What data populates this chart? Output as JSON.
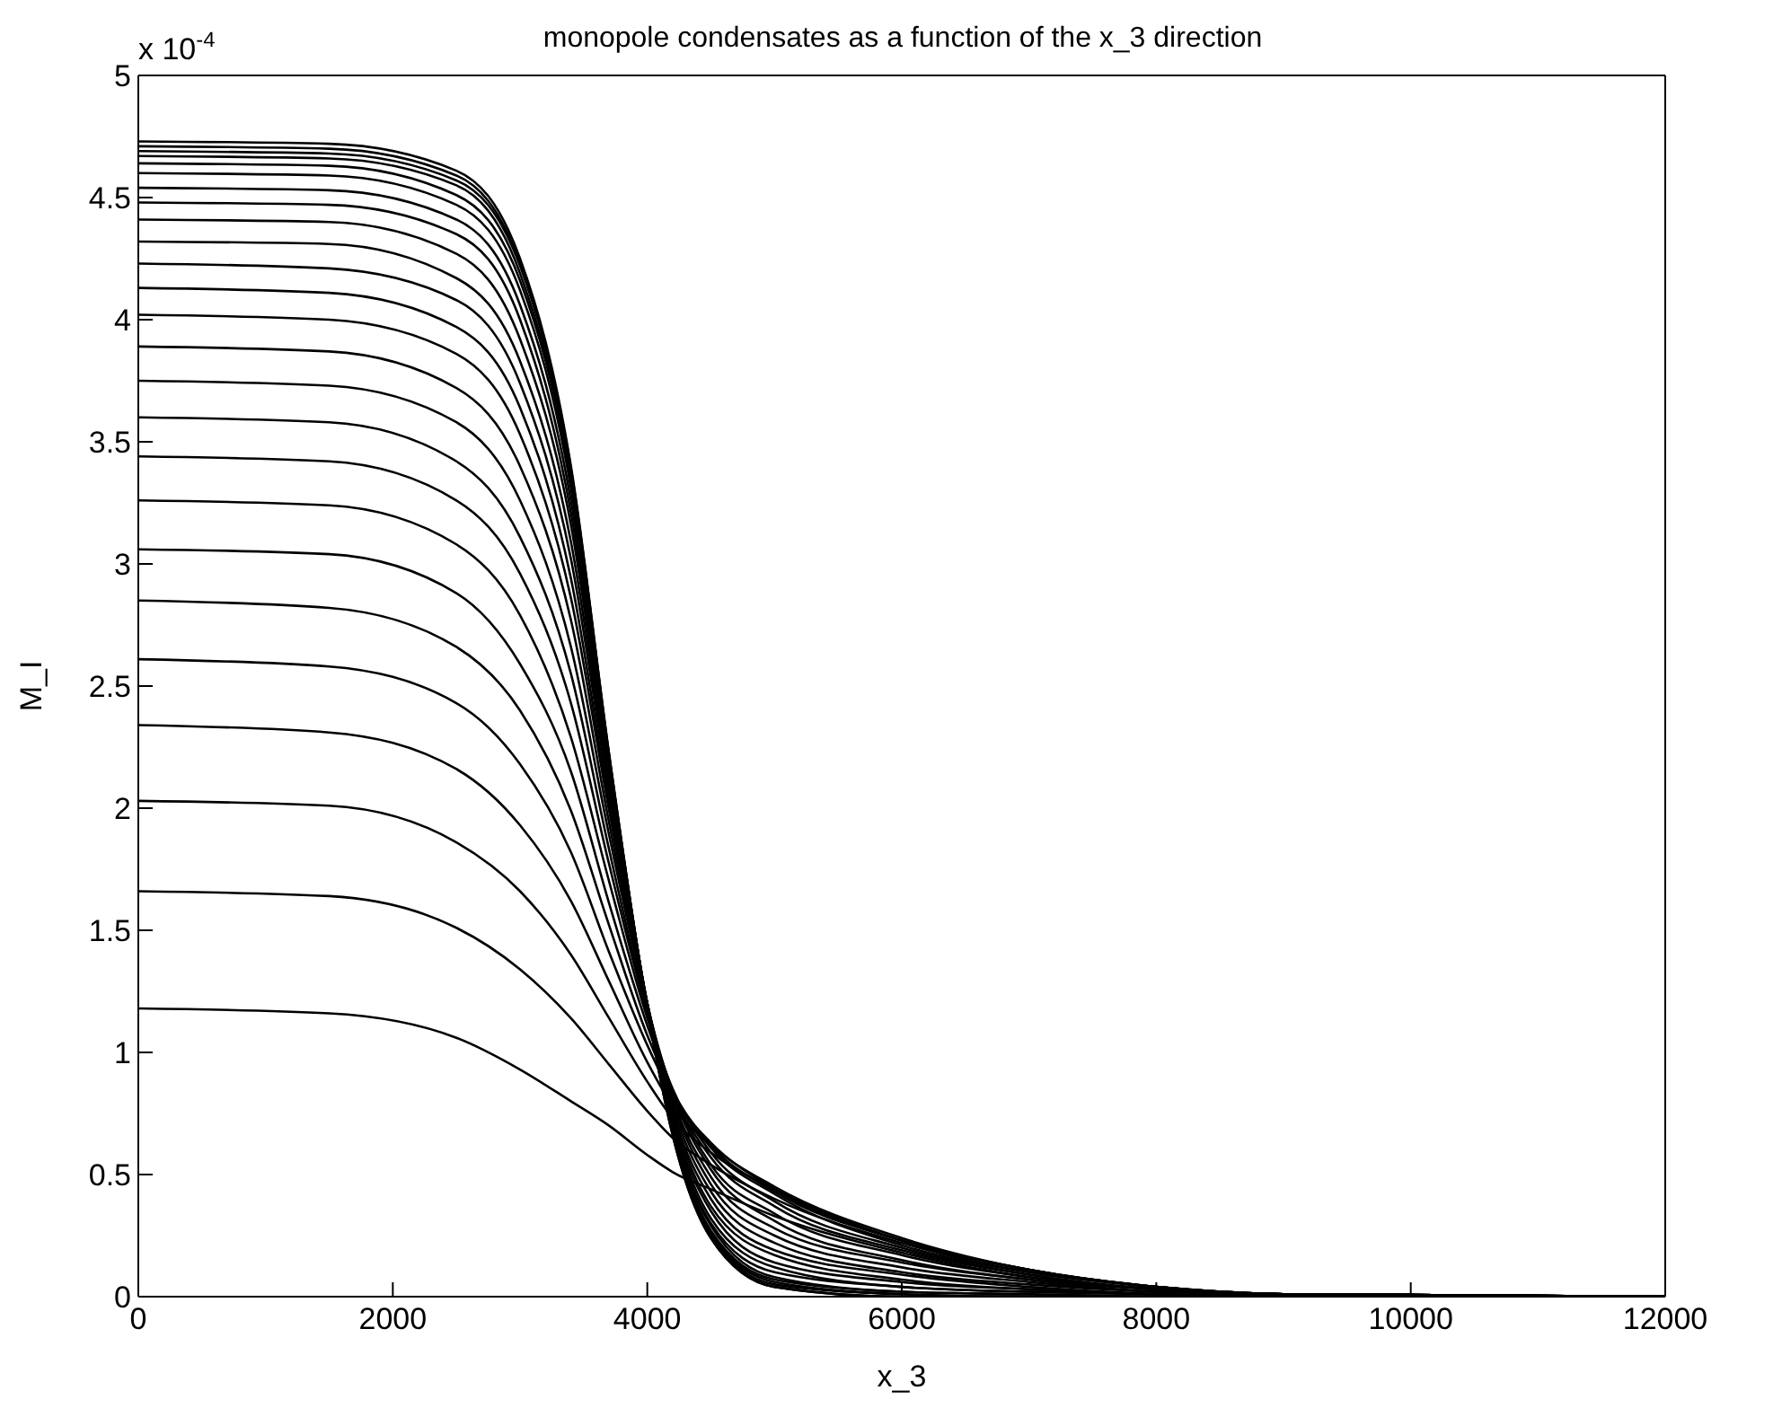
{
  "chart_data": {
    "type": "line",
    "title": "monopole condensates as a function of the x_3 direction",
    "xlabel": "x_3",
    "ylabel": "M_I",
    "annotations": [
      "x 10$^{-4}$"
    ],
    "x": [
      0,
      1500,
      2500,
      3000,
      3400,
      3700,
      4000,
      4200,
      4500,
      5000,
      6000,
      7000,
      8000,
      9000,
      12000
    ],
    "xlim": [
      0,
      12000
    ],
    "xticks": [
      0,
      2000,
      4000,
      6000,
      8000,
      10000,
      12000
    ],
    "ylim": [
      0,
      5
    ],
    "yticks": [
      0,
      0.5,
      1,
      1.5,
      2,
      2.5,
      3,
      3.5,
      4,
      4.5,
      5
    ],
    "marker": "none",
    "line_style": "solid",
    "series": [
      {
        "color": "#000000",
        "values": [
          4.73,
          4.72,
          4.61,
          4.25,
          3.4,
          2.22,
          1.18,
          0.66,
          0.24,
          0.04,
          0,
          0,
          0,
          0,
          0
        ]
      },
      {
        "color": "#000000",
        "values": [
          4.71,
          4.7,
          4.59,
          4.23,
          3.39,
          2.22,
          1.18,
          0.66,
          0.24,
          0.04,
          0,
          0,
          0,
          0,
          0
        ]
      },
      {
        "color": "#000000",
        "values": [
          4.69,
          4.68,
          4.57,
          4.22,
          3.38,
          2.21,
          1.18,
          0.67,
          0.25,
          0.05,
          0.01,
          0,
          0,
          0,
          0
        ]
      },
      {
        "color": "#000000",
        "values": [
          4.67,
          4.66,
          4.55,
          4.19,
          3.36,
          2.2,
          1.19,
          0.68,
          0.26,
          0.06,
          0.01,
          0,
          0,
          0,
          0
        ]
      },
      {
        "color": "#000000",
        "values": [
          4.64,
          4.63,
          4.51,
          4.16,
          3.34,
          2.19,
          1.19,
          0.69,
          0.27,
          0.07,
          0.02,
          0.01,
          0,
          0,
          0
        ]
      },
      {
        "color": "#000000",
        "values": [
          4.6,
          4.59,
          4.47,
          4.12,
          3.31,
          2.18,
          1.19,
          0.69,
          0.29,
          0.08,
          0.02,
          0.01,
          0,
          0,
          0
        ]
      },
      {
        "color": "#000000",
        "values": [
          4.54,
          4.53,
          4.41,
          4.06,
          3.26,
          2.16,
          1.19,
          0.7,
          0.3,
          0.1,
          0.04,
          0.02,
          0.01,
          0,
          0
        ]
      },
      {
        "color": "#000000",
        "values": [
          4.48,
          4.47,
          4.35,
          4.0,
          3.21,
          2.14,
          1.2,
          0.72,
          0.32,
          0.12,
          0.04,
          0.02,
          0.01,
          0,
          0
        ]
      },
      {
        "color": "#000000",
        "values": [
          4.41,
          4.4,
          4.27,
          3.92,
          3.16,
          2.12,
          1.2,
          0.73,
          0.35,
          0.14,
          0.06,
          0.03,
          0.01,
          0,
          0
        ]
      },
      {
        "color": "#000000",
        "values": [
          4.32,
          4.31,
          4.17,
          3.83,
          3.09,
          2.09,
          1.2,
          0.75,
          0.37,
          0.17,
          0.07,
          0.03,
          0.01,
          0,
          0
        ]
      },
      {
        "color": "#000000",
        "values": [
          4.23,
          4.21,
          4.08,
          3.74,
          3.02,
          2.06,
          1.2,
          0.76,
          0.4,
          0.19,
          0.09,
          0.04,
          0.01,
          0,
          0
        ]
      },
      {
        "color": "#000000",
        "values": [
          4.13,
          4.11,
          3.97,
          3.64,
          2.94,
          2.02,
          1.2,
          0.78,
          0.43,
          0.22,
          0.1,
          0.05,
          0.02,
          0.01,
          0
        ]
      },
      {
        "color": "#000000",
        "values": [
          4.02,
          4.0,
          3.86,
          3.53,
          2.86,
          1.99,
          1.2,
          0.8,
          0.46,
          0.25,
          0.12,
          0.06,
          0.02,
          0.01,
          0
        ]
      },
      {
        "color": "#000000",
        "values": [
          3.89,
          3.87,
          3.72,
          3.4,
          2.77,
          1.94,
          1.19,
          0.81,
          0.49,
          0.28,
          0.14,
          0.07,
          0.02,
          0.01,
          0
        ]
      },
      {
        "color": "#000000",
        "values": [
          3.75,
          3.73,
          3.58,
          3.26,
          2.66,
          1.89,
          1.19,
          0.83,
          0.52,
          0.31,
          0.15,
          0.07,
          0.03,
          0.01,
          0
        ]
      },
      {
        "color": "#000000",
        "values": [
          3.6,
          3.58,
          3.42,
          3.11,
          2.55,
          1.83,
          1.17,
          0.84,
          0.54,
          0.34,
          0.17,
          0.08,
          0.03,
          0.01,
          0
        ]
      },
      {
        "color": "#000000",
        "values": [
          3.44,
          3.42,
          3.26,
          2.96,
          2.43,
          1.77,
          1.16,
          0.84,
          0.57,
          0.37,
          0.19,
          0.09,
          0.03,
          0.01,
          0
        ]
      },
      {
        "color": "#000000",
        "values": [
          3.26,
          3.24,
          3.08,
          2.79,
          2.29,
          1.7,
          1.14,
          0.85,
          0.59,
          0.39,
          0.2,
          0.09,
          0.03,
          0.01,
          0
        ]
      },
      {
        "color": "#000000",
        "values": [
          3.06,
          3.04,
          2.88,
          2.59,
          2.15,
          1.61,
          1.11,
          0.84,
          0.61,
          0.42,
          0.21,
          0.1,
          0.04,
          0.01,
          0
        ]
      },
      {
        "color": "#000000",
        "values": [
          2.85,
          2.82,
          2.66,
          2.4,
          1.99,
          1.52,
          1.07,
          0.84,
          0.62,
          0.43,
          0.23,
          0.11,
          0.04,
          0.01,
          0
        ]
      },
      {
        "color": "#000000",
        "values": [
          2.61,
          2.58,
          2.43,
          2.18,
          1.82,
          1.41,
          1.03,
          0.82,
          0.63,
          0.44,
          0.23,
          0.11,
          0.04,
          0.01,
          0
        ]
      },
      {
        "color": "#000000",
        "values": [
          2.34,
          2.31,
          2.16,
          1.93,
          1.62,
          1.29,
          0.96,
          0.78,
          0.62,
          0.45,
          0.24,
          0.11,
          0.04,
          0.01,
          0
        ]
      },
      {
        "color": "#000000",
        "values": [
          2.03,
          2.01,
          1.86,
          1.66,
          1.4,
          1.14,
          0.88,
          0.73,
          0.59,
          0.44,
          0.23,
          0.11,
          0.04,
          0.01,
          0
        ]
      },
      {
        "color": "#000000",
        "values": [
          1.66,
          1.64,
          1.51,
          1.34,
          1.14,
          0.95,
          0.76,
          0.65,
          0.54,
          0.4,
          0.22,
          0.1,
          0.04,
          0.01,
          0
        ]
      },
      {
        "color": "#000000",
        "values": [
          1.18,
          1.16,
          1.06,
          0.93,
          0.8,
          0.7,
          0.58,
          0.51,
          0.44,
          0.33,
          0.18,
          0.08,
          0.03,
          0.01,
          0
        ]
      }
    ]
  }
}
